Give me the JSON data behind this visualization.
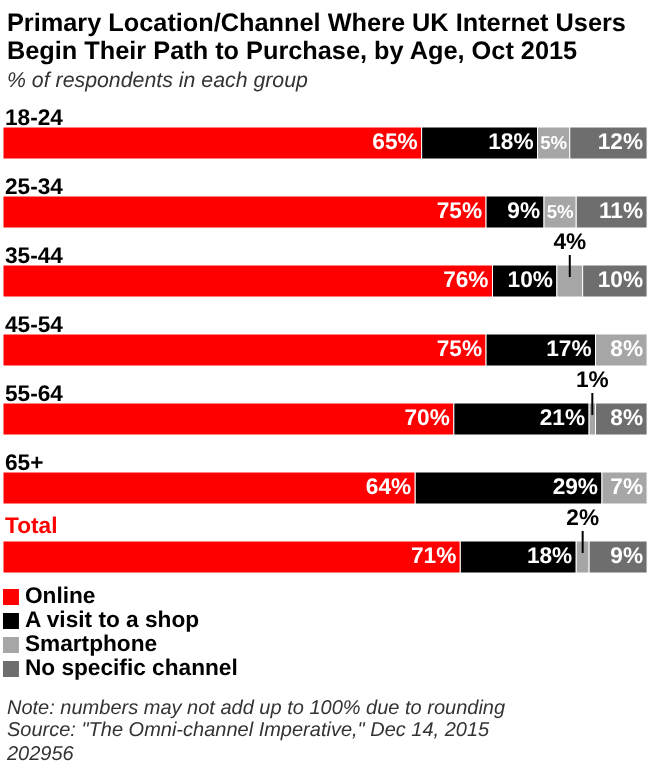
{
  "chart_data": {
    "type": "bar",
    "orientation": "horizontal",
    "stacked": true,
    "title": "Primary Location/Channel Where UK Internet Users Begin Their Path to Purchase, by Age, Oct 2015",
    "subtitle": "% of respondents in each group",
    "categories": [
      "18-24",
      "25-34",
      "35-44",
      "45-54",
      "55-64",
      "65+",
      "Total"
    ],
    "series": [
      {
        "name": "Online",
        "color": "#ff0000",
        "values": [
          65,
          75,
          76,
          75,
          70,
          64,
          71
        ],
        "value_labels": [
          "65%",
          "75%",
          "76%",
          "75%",
          "70%",
          "64%",
          "71%"
        ]
      },
      {
        "name": "A visit to a shop",
        "color": "#000000",
        "values": [
          18,
          9,
          10,
          17,
          21,
          29,
          18
        ],
        "value_labels": [
          "18%",
          "9%",
          "10%",
          "17%",
          "21%",
          "29%",
          "18%"
        ]
      },
      {
        "name": "Smartphone",
        "color": "#a6a6a6",
        "values": [
          5,
          5,
          4,
          null,
          1,
          null,
          2
        ],
        "value_labels": [
          "5%",
          "5%",
          "4%",
          null,
          "1%",
          null,
          "2%"
        ]
      },
      {
        "name": "No specific channel",
        "color": "#6e6e6e",
        "colors": [
          "#6e6e6e",
          "#6e6e6e",
          "#6e6e6e",
          "#a6a6a6",
          "#6e6e6e",
          "#a6a6a6",
          "#6e6e6e"
        ],
        "values": [
          12,
          11,
          10,
          8,
          8,
          7,
          9
        ],
        "value_labels": [
          "12%",
          "11%",
          "10%",
          "8%",
          "8%",
          "7%",
          "9%"
        ]
      }
    ],
    "legend": "bottom",
    "annotations": [
      "Note: numbers may not add up to 100% due to rounding",
      "Source: \"The Omni-channel Imperative,\" Dec 14, 2015",
      "202956"
    ]
  }
}
